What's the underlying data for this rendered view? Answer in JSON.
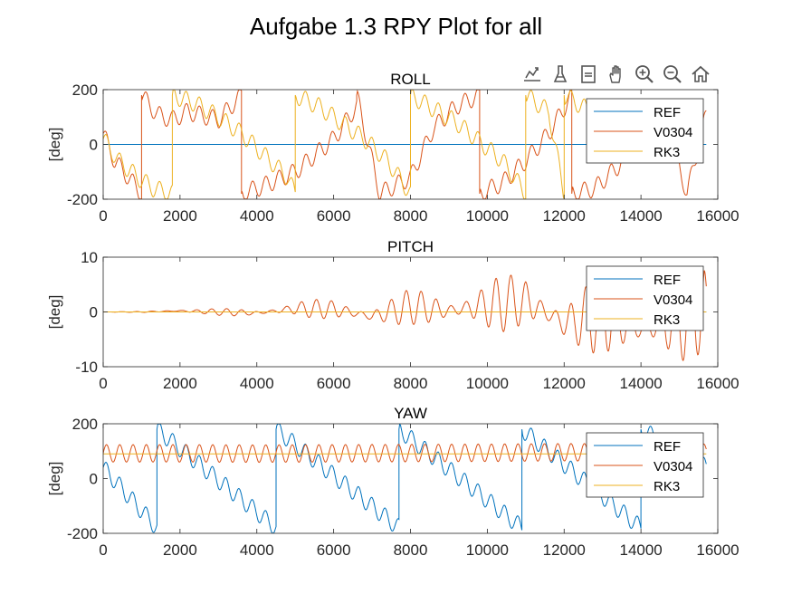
{
  "figure": {
    "title": "Aufgabe 1.3 RPY Plot for all"
  },
  "toolbar": {
    "icons": [
      "data-tip-icon",
      "brush-icon",
      "data-cursor-icon",
      "pan-hand-icon",
      "zoom-in-icon",
      "zoom-out-icon",
      "home-icon"
    ]
  },
  "colors": {
    "REF": "#0072BD",
    "V0304": "#D95319",
    "RK3": "#EDB120"
  },
  "chart_data": [
    {
      "type": "line",
      "title": "ROLL",
      "xlabel": "",
      "ylabel": "[deg]",
      "xlim": [
        0,
        16000
      ],
      "ylim": [
        -200,
        200
      ],
      "xticks": [
        0,
        2000,
        4000,
        6000,
        8000,
        10000,
        12000,
        14000,
        16000
      ],
      "yticks": [
        -200,
        0,
        200
      ],
      "legend": {
        "position": "top-right",
        "entries": [
          "REF",
          "V0304",
          "RK3"
        ]
      },
      "series": [
        {
          "name": "REF",
          "color": "#0072BD",
          "description": "constant 0",
          "x": [
            0,
            15700
          ],
          "y": [
            0,
            0
          ]
        },
        {
          "name": "V0304",
          "color": "#D95319",
          "x": [
            0,
            300,
            600,
            1000,
            1000,
            1400,
            1800,
            2200,
            3000,
            3600,
            3600,
            4200,
            5000,
            6000,
            6600,
            6600,
            7200,
            8000,
            8600,
            9200,
            9800,
            9800,
            10400,
            11000,
            11600,
            12200,
            12200,
            12800,
            13400,
            14000,
            14600,
            15200,
            15700
          ],
          "y": [
            40,
            -60,
            -110,
            -180,
            180,
            110,
            90,
            120,
            90,
            180,
            -180,
            -150,
            -100,
            20,
            140,
            180,
            -180,
            -120,
            60,
            140,
            180,
            -180,
            -140,
            -60,
            40,
            180,
            -180,
            -160,
            -80,
            20,
            100,
            -180,
            110
          ]
        },
        {
          "name": "RK3",
          "color": "#EDB120",
          "x": [
            0,
            400,
            900,
            1300,
            1800,
            1800,
            2400,
            3000,
            3600,
            4200,
            4800,
            5000,
            5000,
            5600,
            6200,
            6800,
            7400,
            7800,
            8000,
            8000,
            8600,
            9200,
            9800,
            10400,
            11000,
            11000,
            11600,
            12000,
            12000,
            12800,
            13600,
            14400,
            15000
          ],
          "y": [
            20,
            -60,
            -120,
            -160,
            -180,
            180,
            150,
            100,
            40,
            -40,
            -120,
            -180,
            180,
            140,
            80,
            20,
            -60,
            -140,
            -180,
            180,
            130,
            80,
            10,
            -60,
            -180,
            180,
            120,
            -180,
            180,
            110,
            60,
            10,
            -60
          ]
        }
      ]
    },
    {
      "type": "line",
      "title": "PITCH",
      "xlabel": "",
      "ylabel": "[deg]",
      "xlim": [
        0,
        16000
      ],
      "ylim": [
        -10,
        10
      ],
      "xticks": [
        0,
        2000,
        4000,
        6000,
        8000,
        10000,
        12000,
        14000,
        16000
      ],
      "yticks": [
        -10,
        0,
        10
      ],
      "legend": {
        "position": "top-right",
        "entries": [
          "REF",
          "V0304",
          "RK3"
        ]
      },
      "series": [
        {
          "name": "REF",
          "color": "#0072BD",
          "x": [
            0,
            15700
          ],
          "y": [
            0,
            0
          ]
        },
        {
          "name": "V0304",
          "color": "#D95319",
          "x": [
            0,
            1000,
            2000,
            3000,
            4000,
            5000,
            6000,
            7000,
            8000,
            9000,
            10000,
            11000,
            12000,
            13000,
            14000,
            15000,
            15650,
            15700
          ],
          "amp": [
            0,
            0.1,
            0.4,
            0.6,
            0.9,
            1.4,
            2.0,
            2.6,
            3.2,
            4.0,
            4.8,
            5.6,
            6.2,
            6.8,
            7.4,
            8.2,
            8.6,
            8.6
          ],
          "offset": [
            0,
            0,
            0.2,
            0,
            -0.2,
            0.6,
            0.5,
            -0.8,
            1.0,
            0.2,
            1.2,
            2.0,
            -2.0,
            -0.6,
            -3.0,
            -1.5,
            1.0,
            -2.0
          ]
        },
        {
          "name": "RK3",
          "color": "#EDB120",
          "x": [
            0,
            15700
          ],
          "y": [
            0,
            0
          ]
        }
      ]
    },
    {
      "type": "line",
      "title": "YAW",
      "xlabel": "",
      "ylabel": "[deg]",
      "xlim": [
        0,
        16000
      ],
      "ylim": [
        -200,
        200
      ],
      "xticks": [
        0,
        2000,
        4000,
        6000,
        8000,
        10000,
        12000,
        14000,
        16000
      ],
      "yticks": [
        -200,
        0,
        200
      ],
      "legend": {
        "position": "top-right",
        "entries": [
          "REF",
          "V0304",
          "RK3"
        ]
      },
      "series": [
        {
          "name": "REF",
          "color": "#0072BD",
          "x": [
            0,
            1400,
            1400,
            4500,
            4500,
            7700,
            7700,
            10900,
            10900,
            14000,
            14000,
            15700
          ],
          "y": [
            40,
            -180,
            180,
            -180,
            180,
            -180,
            180,
            -180,
            180,
            -180,
            180,
            40
          ]
        },
        {
          "name": "V0304",
          "color": "#D95319",
          "x": [
            0,
            2000,
            4000,
            6000,
            8000,
            10000,
            12000,
            14000,
            15700
          ],
          "y": [
            92,
            92,
            91,
            92,
            93,
            94,
            96,
            95,
            94
          ]
        },
        {
          "name": "RK3",
          "color": "#EDB120",
          "x": [
            0,
            15700
          ],
          "y": [
            90,
            90
          ]
        }
      ]
    }
  ]
}
